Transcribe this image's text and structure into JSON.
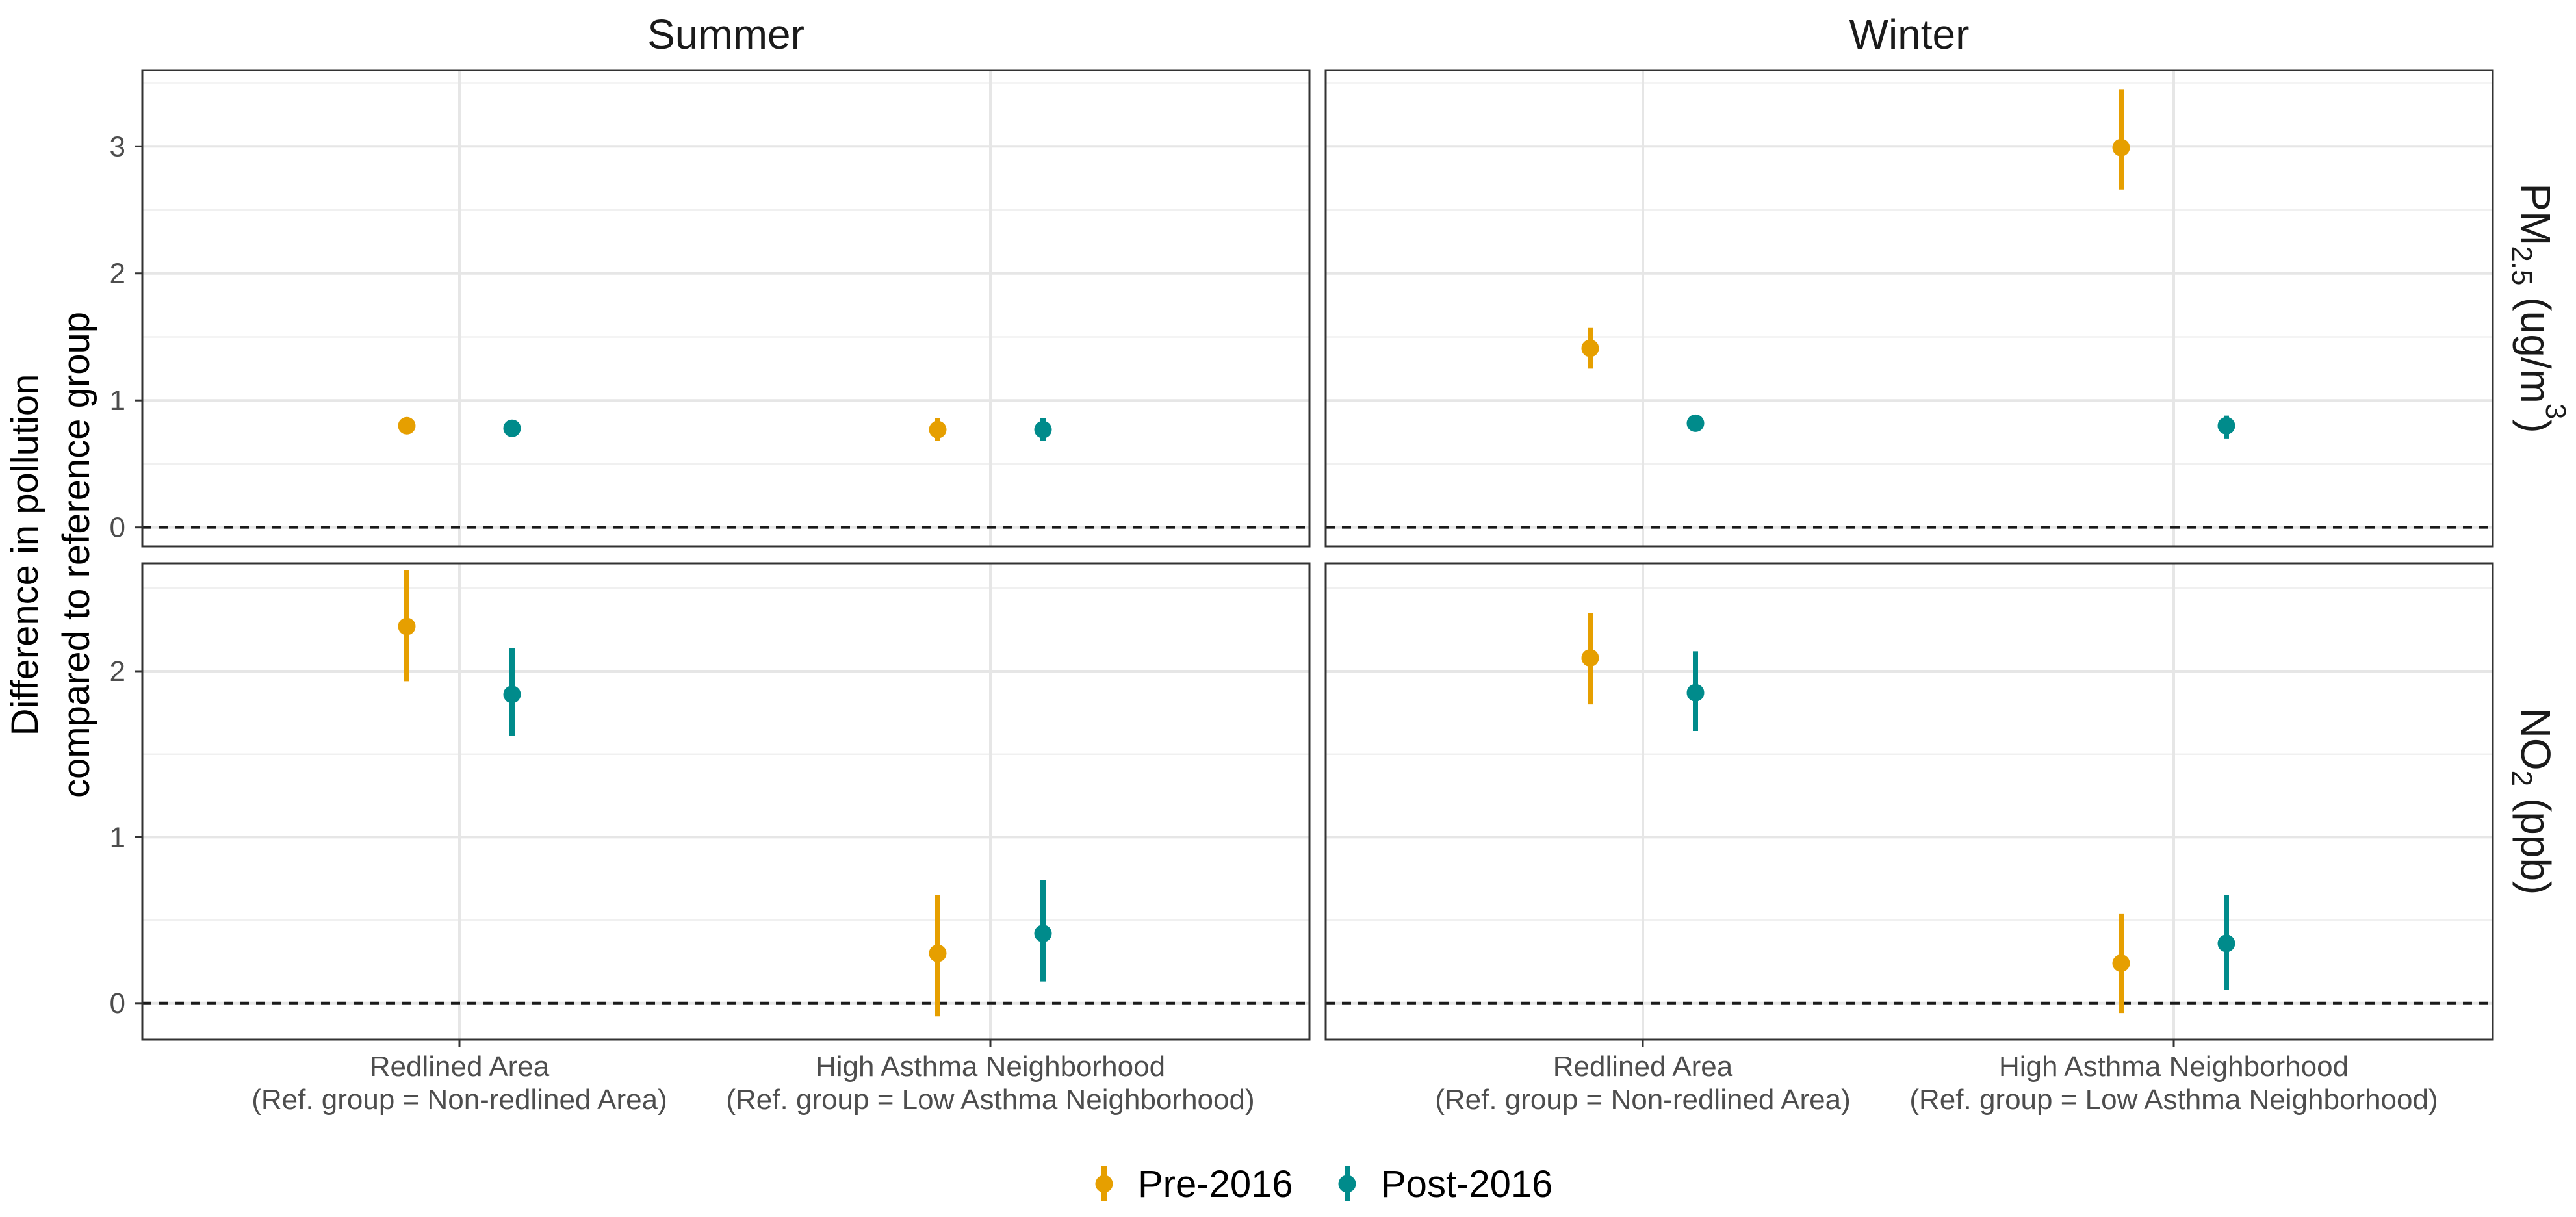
{
  "chart_data": {
    "type": "scatter",
    "subtype": "point-range (estimate with confidence interval)",
    "y_axis_title": [
      "Difference in pollution",
      "compared to reference group"
    ],
    "columns": [
      "Summer",
      "Winter"
    ],
    "rows": [
      {
        "key": "pm25",
        "label_parts": [
          "PM",
          "2.5",
          " (ug/m",
          "3",
          ")"
        ],
        "ylim": [
          -0.15,
          3.6
        ],
        "yticks": [
          0,
          1,
          2,
          3
        ]
      },
      {
        "key": "no2",
        "label_parts": [
          "NO",
          "2",
          " (ppb)"
        ],
        "ylim": [
          -0.22,
          2.65
        ],
        "yticks": [
          0,
          1,
          2
        ]
      }
    ],
    "categories": [
      [
        "Redlined Area",
        "(Ref. group = Non-redlined Area)"
      ],
      [
        "High Asthma Neighborhood",
        "(Ref. group = Low Asthma Neighborhood)"
      ]
    ],
    "reference_line": 0,
    "series": [
      {
        "name": "Pre-2016",
        "color": "#E69F00",
        "values": {
          "Summer": {
            "pm25": [
              {
                "est": 0.8,
                "lo": 0.76,
                "hi": 0.84
              },
              {
                "est": 0.77,
                "lo": 0.68,
                "hi": 0.86
              }
            ],
            "no2": [
              {
                "est": 2.27,
                "lo": 1.94,
                "hi": 2.61
              },
              {
                "est": 0.3,
                "lo": -0.08,
                "hi": 0.65
              }
            ]
          },
          "Winter": {
            "pm25": [
              {
                "est": 1.41,
                "lo": 1.25,
                "hi": 1.57
              },
              {
                "est": 2.99,
                "lo": 2.66,
                "hi": 3.45
              }
            ],
            "no2": [
              {
                "est": 2.08,
                "lo": 1.8,
                "hi": 2.35
              },
              {
                "est": 0.24,
                "lo": -0.06,
                "hi": 0.54
              }
            ]
          }
        }
      },
      {
        "name": "Post-2016",
        "color": "#008B8B",
        "values": {
          "Summer": {
            "pm25": [
              {
                "est": 0.78,
                "lo": 0.74,
                "hi": 0.82
              },
              {
                "est": 0.77,
                "lo": 0.68,
                "hi": 0.86
              }
            ],
            "no2": [
              {
                "est": 1.86,
                "lo": 1.61,
                "hi": 2.14
              },
              {
                "est": 0.42,
                "lo": 0.13,
                "hi": 0.74
              }
            ]
          },
          "Winter": {
            "pm25": [
              {
                "est": 0.82,
                "lo": 0.78,
                "hi": 0.86
              },
              {
                "est": 0.8,
                "lo": 0.7,
                "hi": 0.88
              }
            ],
            "no2": [
              {
                "est": 1.87,
                "lo": 1.64,
                "hi": 2.12
              },
              {
                "est": 0.36,
                "lo": 0.08,
                "hi": 0.65
              }
            ]
          }
        }
      }
    ],
    "legend": {
      "position": "bottom",
      "entries": [
        "Pre-2016",
        "Post-2016"
      ]
    }
  }
}
